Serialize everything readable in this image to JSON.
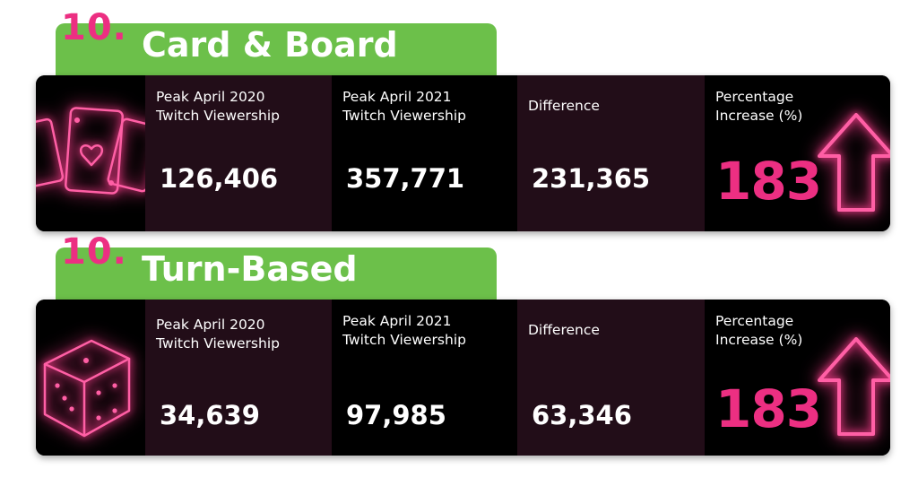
{
  "sections": [
    {
      "rank": "10.",
      "title": "Card & Board",
      "icon": "playing-cards-icon",
      "columns": [
        {
          "label": "Peak April 2020\nTwitch Viewership",
          "value": "126,406"
        },
        {
          "label": "Peak April 2021\nTwitch Viewership",
          "value": "357,771"
        },
        {
          "label": "Difference",
          "value": "231,365"
        },
        {
          "label": "Percentage\nIncrease (%)",
          "value": "183"
        }
      ]
    },
    {
      "rank": "10.",
      "title": "Turn-Based",
      "icon": "dice-icon",
      "columns": [
        {
          "label": "Peak April 2020\nTwitch Viewership",
          "value": "34,639"
        },
        {
          "label": "Peak April 2021\nTwitch Viewership",
          "value": "97,985"
        },
        {
          "label": "Difference",
          "value": "63,346"
        },
        {
          "label": "Percentage\nIncrease (%)",
          "value": "183"
        }
      ]
    }
  ],
  "colors": {
    "tab_green": "#6cc04a",
    "accent_pink": "#ec2f82",
    "panel_black": "#000000",
    "panel_dark": "#220d18"
  }
}
